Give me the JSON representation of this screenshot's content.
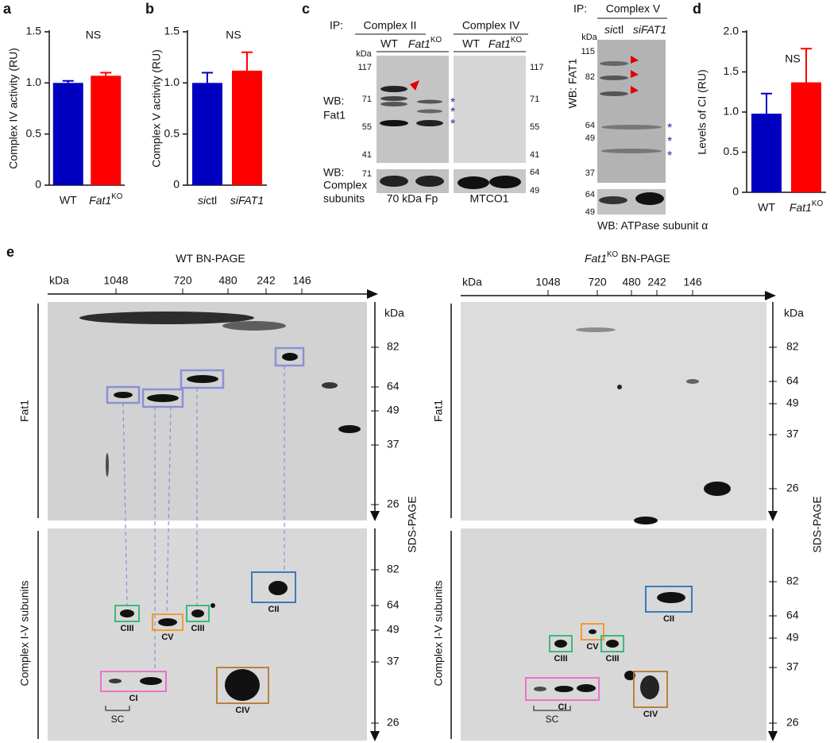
{
  "chart_data": [
    {
      "type": "bar",
      "panel": "a",
      "ylabel": "Complex IV activity (RU)",
      "annotation": "NS",
      "categories": [
        "WT",
        [
          {
            "text": "Fat1",
            "italic": true
          },
          {
            "text": "KO",
            "sup": true
          }
        ]
      ],
      "values": [
        1.0,
        1.07
      ],
      "errors": [
        0.02,
        0.03
      ],
      "colors": [
        "#0000c0",
        "#ff0000"
      ],
      "ylim": [
        0,
        1.5
      ],
      "yticks": [
        0,
        0.5,
        {
          "value": 1,
          "label": "1.0"
        },
        1.5
      ]
    },
    {
      "type": "bar",
      "panel": "b",
      "ylabel": "Complex V activity (RU)",
      "annotation": "NS",
      "categories": [
        [
          {
            "text": "si",
            "italic": true
          },
          {
            "text": "ctl"
          }
        ],
        [
          {
            "text": "siFAT1",
            "italic": true
          }
        ]
      ],
      "values": [
        1.0,
        1.12
      ],
      "errors": [
        0.1,
        0.18
      ],
      "colors": [
        "#0000c0",
        "#ff0000"
      ],
      "ylim": [
        0,
        1.5
      ],
      "yticks": [
        0,
        0.5,
        {
          "value": 1,
          "label": "1.0"
        },
        1.5
      ]
    },
    {
      "type": "bar",
      "panel": "d",
      "ylabel": "Levels of CI (RU)",
      "annotation": "NS",
      "categories": [
        "WT",
        [
          {
            "text": "Fat1",
            "italic": true
          },
          {
            "text": "KO",
            "sup": true
          }
        ]
      ],
      "values": [
        0.98,
        1.37
      ],
      "errors": [
        0.25,
        0.42
      ],
      "colors": [
        "#0000c0",
        "#ff0000"
      ],
      "ylim": [
        0,
        2
      ],
      "yticks": [
        0,
        0.5,
        {
          "value": 1,
          "label": "1.0"
        },
        1.5,
        {
          "value": 2,
          "label": "2.0"
        }
      ]
    }
  ],
  "panel_c": {
    "label": "c",
    "ip": "IP:",
    "complex_ii": "Complex II",
    "complex_iv": "Complex IV",
    "lanes_ii": [
      "WT",
      [
        {
          "text": "Fat1",
          "italic": true
        },
        {
          "text": "KO",
          "sup": true
        }
      ]
    ],
    "lanes_iv": [
      "WT",
      [
        {
          "text": "Fat1",
          "italic": true
        },
        {
          "text": "KO",
          "sup": true
        }
      ]
    ],
    "kda": "kDa",
    "markers_left": [
      117,
      71,
      55,
      41
    ],
    "markers_right": [
      117,
      71,
      55,
      41
    ],
    "wb_fat1": [
      "WB:",
      "Fat1"
    ],
    "wb_complex": [
      "WB:",
      "Complex",
      "subunits"
    ],
    "lower_left": [
      71
    ],
    "lower_right": [
      64,
      49
    ],
    "antibody_ii": "70 kDa Fp",
    "antibody_iv": "MTCO1",
    "asterisks_ii": [
      "*",
      "*",
      "*"
    ],
    "ip_v": "IP:",
    "complex_v": "Complex V",
    "lanes_v": [
      [
        {
          "text": "si",
          "italic": true
        },
        {
          "text": "ctl"
        }
      ],
      [
        {
          "text": "siFAT1",
          "italic": true
        }
      ]
    ],
    "kda_v": "kDa",
    "markers_v": [
      115,
      82,
      64,
      49,
      37
    ],
    "lower_v": [
      64,
      49
    ],
    "wb_fat1_v": "WB: FAT1",
    "wb_atpase": "WB: ATPase subunit α",
    "asterisks_v": [
      "*",
      "*",
      "*"
    ]
  },
  "panel_e": {
    "label": "e",
    "wt": {
      "title": [
        {
          "text": "WT  BN-PAGE"
        }
      ],
      "bn_kda": "kDa",
      "bn_markers": [
        1048,
        720,
        480,
        242,
        146
      ],
      "sds_kda": "kDa",
      "sds_top": [
        82,
        64,
        49,
        37,
        26
      ],
      "sds_bottom": [
        82,
        64,
        49,
        37,
        26
      ],
      "sds_label": "SDS-PAGE",
      "row_top": "Fat1",
      "row_bottom": "Complex I-V subunits",
      "boxes": [
        "CIII",
        "CV",
        "CIII",
        "CII",
        "CI",
        "CIV"
      ],
      "sc": "SC"
    },
    "ko": {
      "title": [
        {
          "text": "Fat1",
          "italic": true
        },
        {
          "text": "KO",
          "sup": true
        },
        {
          "text": " BN-PAGE"
        }
      ],
      "bn_kda": "kDa",
      "bn_markers": [
        1048,
        720,
        480,
        242,
        146
      ],
      "sds_kda": "kDa",
      "sds_top": [
        82,
        64,
        49,
        37,
        26
      ],
      "sds_bottom": [
        82,
        64,
        49,
        37,
        26
      ],
      "sds_label": "SDS-PAGE",
      "row_top": "Fat1",
      "row_bottom": "Complex I-V subunits",
      "boxes": [
        "CIII",
        "CV",
        "CIII",
        "CII",
        "CI",
        "CIV"
      ],
      "sc": "SC"
    }
  }
}
